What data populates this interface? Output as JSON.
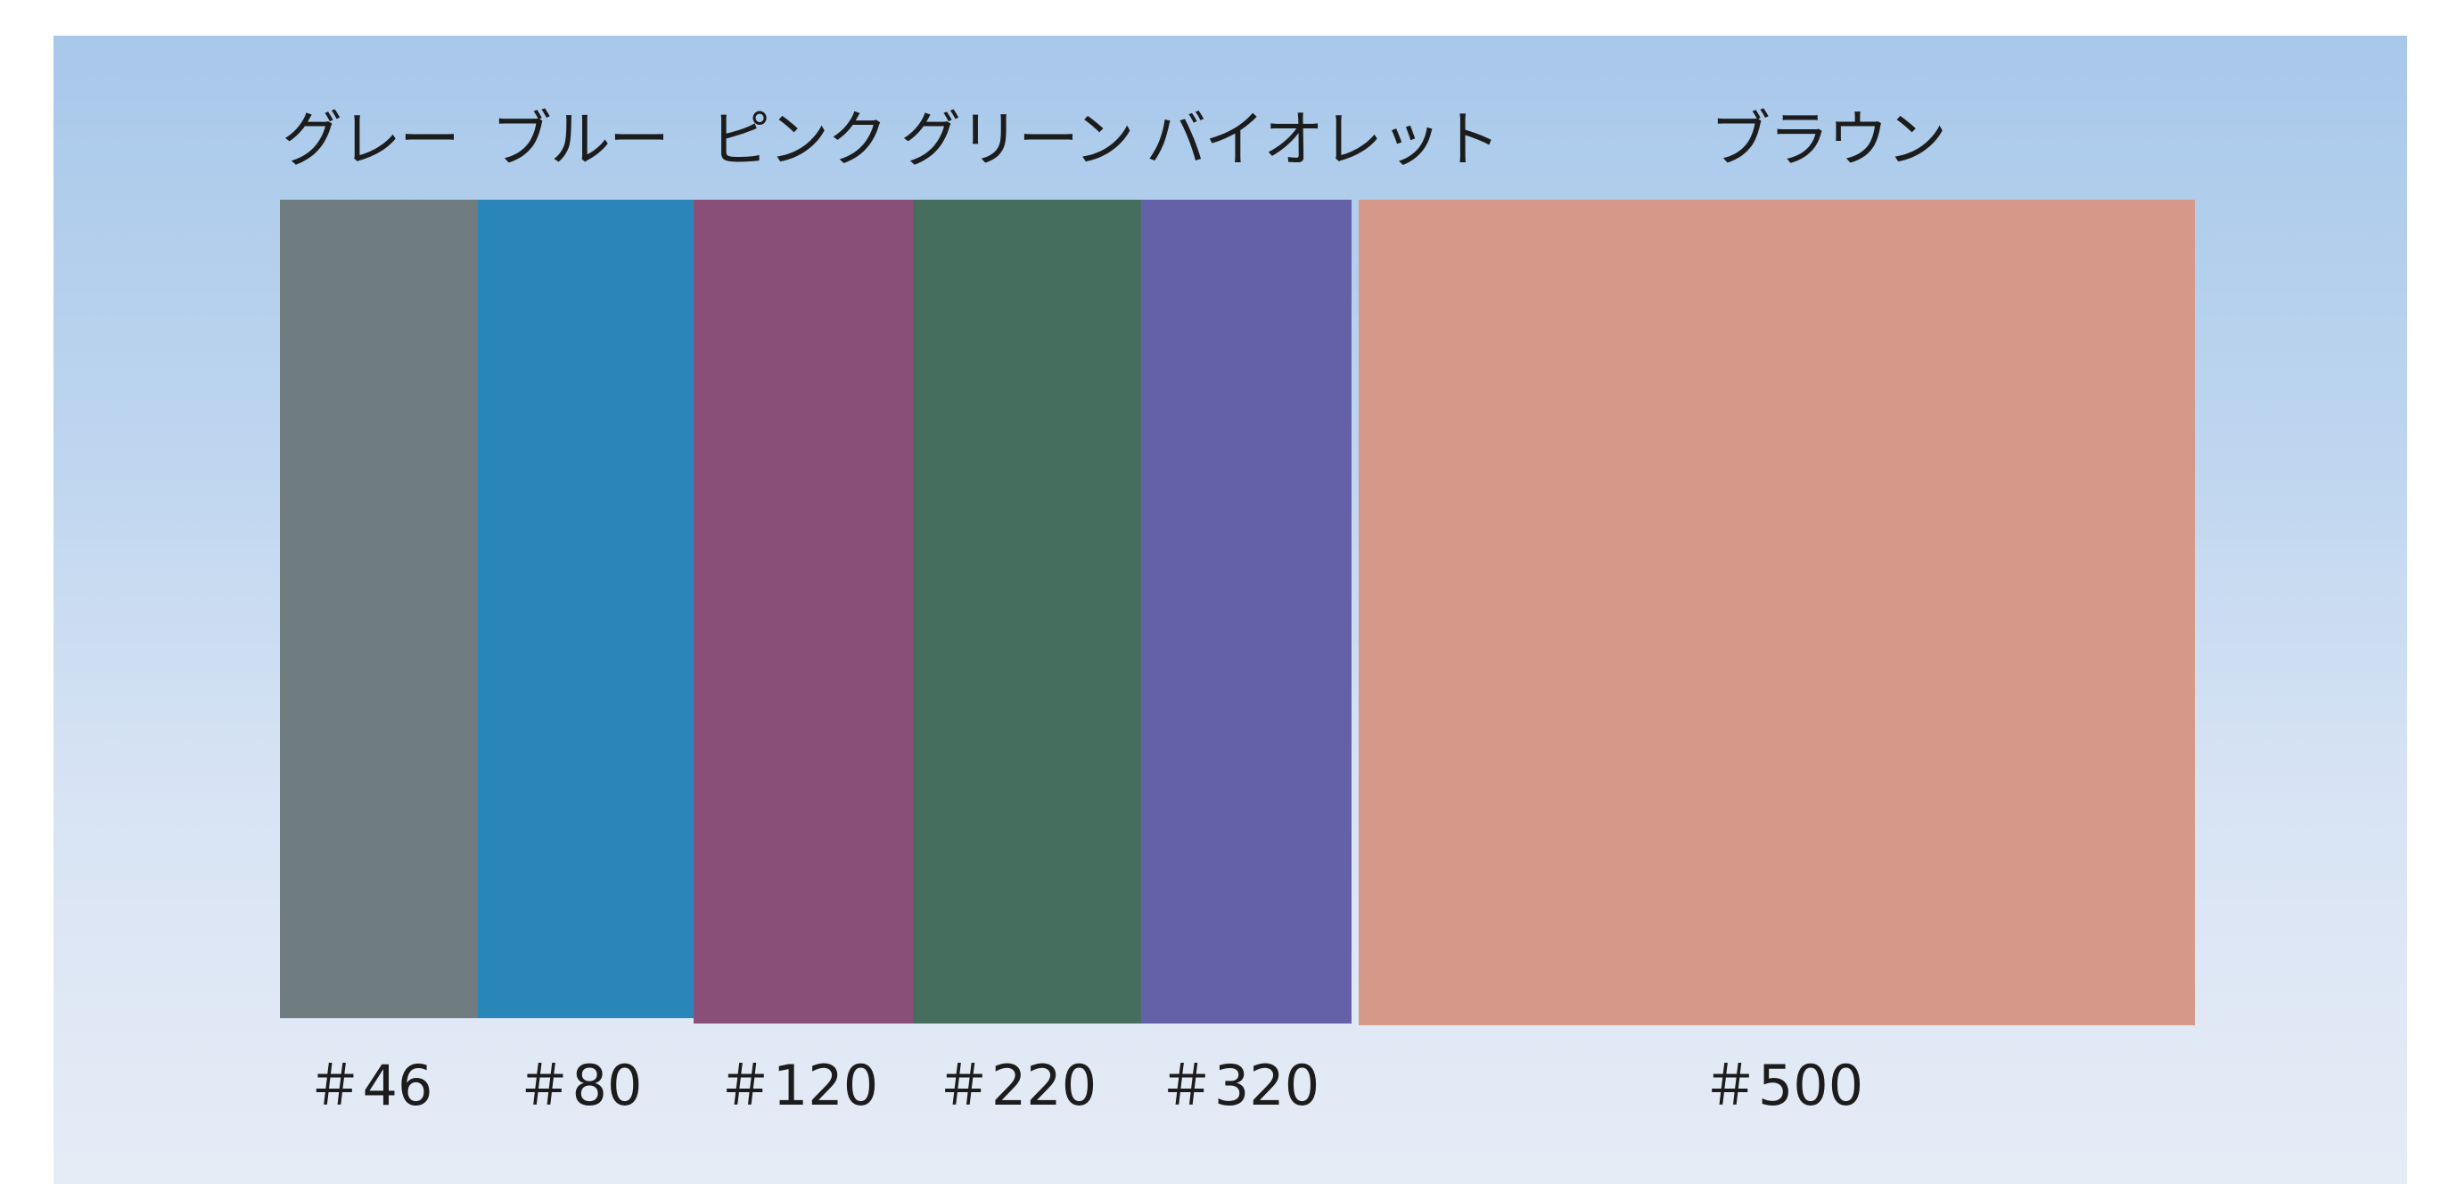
{
  "swatches": [
    {
      "name": "グレー",
      "grit": "＃46",
      "color": "#6f7d80"
    },
    {
      "name": "ブルー",
      "grit": "＃80",
      "color": "#2a86b8"
    },
    {
      "name": "ピンク",
      "grit": "＃120",
      "color": "#8a4f78"
    },
    {
      "name": "グリーン",
      "grit": "＃220",
      "color": "#456e5f"
    },
    {
      "name": "バイオレット",
      "grit": "＃320",
      "color": "#6561a8"
    },
    {
      "name": "ブラウン",
      "grit": "＃500",
      "color": "#d5998a"
    }
  ],
  "background_colors": {
    "top": "#a8c8ea",
    "bottom": "#e6ecf6"
  }
}
